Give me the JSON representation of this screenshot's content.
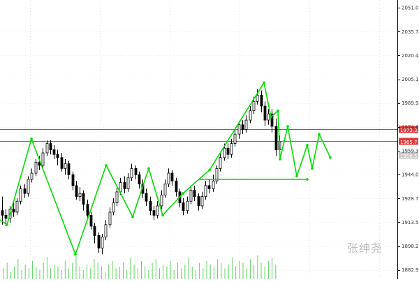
{
  "chart_data": {
    "type": "candlestick",
    "price_axis": {
      "ticks": [
        "2051.02",
        "2035.74",
        "2020.46",
        "2005.18",
        "1989.90",
        "1974.62",
        "1959.34",
        "1944.06",
        "1928.78",
        "1913.50",
        "1898.22",
        "1882.94"
      ],
      "range": [
        1877,
        2056
      ]
    },
    "horizontal_lines": [
      {
        "label": "1973.33",
        "value": 1973.33,
        "color": "#e03a3a"
      },
      {
        "label": "1965.74",
        "value": 1965.74,
        "color": "#e03a3a"
      }
    ],
    "current_price": {
      "label": "1956.57",
      "value": 1956.57
    },
    "zigzag_lines": [
      {
        "name": "main",
        "color": "#00dd00",
        "points": [
          [
            0,
            1915
          ],
          [
            10,
            1912
          ],
          [
            45,
            1967
          ],
          [
            108,
            1893
          ],
          [
            152,
            1950
          ],
          [
            190,
            1917
          ],
          [
            213,
            1948
          ],
          [
            233,
            1918
          ],
          [
            262,
            1932
          ],
          [
            300,
            1947
          ],
          [
            378,
            2003
          ],
          [
            388,
            1981
          ],
          [
            398,
            1985
          ],
          [
            401,
            1954
          ],
          [
            412,
            1975
          ],
          [
            425,
            1943
          ],
          [
            440,
            1963
          ],
          [
            447,
            1948
          ],
          [
            457,
            1970
          ],
          [
            473,
            1955
          ]
        ]
      },
      {
        "name": "support",
        "color": "#00dd00",
        "points": [
          [
            285,
            1941
          ],
          [
            440,
            1941
          ]
        ]
      }
    ],
    "candles": [
      [
        1921,
        1918,
        1930,
        1912
      ],
      [
        1918,
        1916,
        1922,
        1911
      ],
      [
        1916,
        1922,
        1924,
        1913
      ],
      [
        1922,
        1920,
        1926,
        1917
      ],
      [
        1920,
        1927,
        1929,
        1918
      ],
      [
        1927,
        1935,
        1937,
        1925
      ],
      [
        1935,
        1932,
        1938,
        1929
      ],
      [
        1932,
        1941,
        1943,
        1930
      ],
      [
        1941,
        1945,
        1948,
        1939
      ],
      [
        1945,
        1952,
        1954,
        1943
      ],
      [
        1952,
        1950,
        1956,
        1947
      ],
      [
        1950,
        1958,
        1961,
        1948
      ],
      [
        1958,
        1964,
        1966,
        1956
      ],
      [
        1964,
        1960,
        1966,
        1957
      ],
      [
        1960,
        1957,
        1963,
        1954
      ],
      [
        1957,
        1955,
        1960,
        1950
      ],
      [
        1955,
        1948,
        1958,
        1946
      ],
      [
        1948,
        1951,
        1954,
        1944
      ],
      [
        1951,
        1944,
        1953,
        1941
      ],
      [
        1944,
        1937,
        1946,
        1934
      ],
      [
        1937,
        1930,
        1940,
        1928
      ],
      [
        1930,
        1932,
        1936,
        1927
      ],
      [
        1932,
        1925,
        1934,
        1921
      ],
      [
        1925,
        1918,
        1928,
        1915
      ],
      [
        1918,
        1911,
        1920,
        1909
      ],
      [
        1911,
        1905,
        1913,
        1900
      ],
      [
        1905,
        1897,
        1907,
        1894
      ],
      [
        1897,
        1904,
        1906,
        1893
      ],
      [
        1904,
        1912,
        1915,
        1902
      ],
      [
        1912,
        1920,
        1923,
        1910
      ],
      [
        1920,
        1926,
        1929,
        1918
      ],
      [
        1926,
        1933,
        1936,
        1924
      ],
      [
        1933,
        1939,
        1942,
        1931
      ],
      [
        1939,
        1935,
        1943,
        1932
      ],
      [
        1935,
        1942,
        1945,
        1933
      ],
      [
        1942,
        1948,
        1951,
        1940
      ],
      [
        1948,
        1944,
        1950,
        1941
      ],
      [
        1944,
        1938,
        1946,
        1935
      ],
      [
        1938,
        1932,
        1941,
        1929
      ],
      [
        1932,
        1927,
        1935,
        1924
      ],
      [
        1927,
        1921,
        1930,
        1918
      ],
      [
        1921,
        1918,
        1924,
        1915
      ],
      [
        1918,
        1924,
        1927,
        1916
      ],
      [
        1924,
        1931,
        1934,
        1922
      ],
      [
        1931,
        1938,
        1941,
        1929
      ],
      [
        1938,
        1945,
        1948,
        1936
      ],
      [
        1945,
        1940,
        1947,
        1937
      ],
      [
        1940,
        1933,
        1942,
        1930
      ],
      [
        1933,
        1926,
        1935,
        1923
      ],
      [
        1926,
        1921,
        1929,
        1918
      ],
      [
        1921,
        1927,
        1930,
        1919
      ],
      [
        1927,
        1934,
        1937,
        1925
      ],
      [
        1934,
        1930,
        1937,
        1927
      ],
      [
        1930,
        1924,
        1932,
        1921
      ],
      [
        1924,
        1930,
        1933,
        1922
      ],
      [
        1930,
        1937,
        1940,
        1928
      ],
      [
        1937,
        1935,
        1941,
        1932
      ],
      [
        1935,
        1940,
        1944,
        1933
      ],
      [
        1940,
        1948,
        1950,
        1938
      ],
      [
        1948,
        1955,
        1958,
        1946
      ],
      [
        1955,
        1961,
        1964,
        1953
      ],
      [
        1961,
        1957,
        1964,
        1954
      ],
      [
        1957,
        1964,
        1967,
        1955
      ],
      [
        1964,
        1970,
        1973,
        1962
      ],
      [
        1970,
        1976,
        1978,
        1967
      ],
      [
        1976,
        1973,
        1979,
        1970
      ],
      [
        1973,
        1979,
        1982,
        1971
      ],
      [
        1979,
        1985,
        1988,
        1977
      ],
      [
        1985,
        1991,
        1994,
        1983
      ],
      [
        1991,
        1995,
        1999,
        1989
      ],
      [
        1995,
        1988,
        1998,
        1984
      ],
      [
        1988,
        1979,
        1991,
        1975
      ],
      [
        1979,
        1983,
        1986,
        1976
      ],
      [
        1983,
        1975,
        1986,
        1971
      ],
      [
        1975,
        1960,
        1980,
        1956
      ],
      [
        1960,
        1965,
        1969,
        1957
      ]
    ],
    "volume_bars": [
      6,
      9,
      4,
      7,
      11,
      5,
      8,
      6,
      10,
      7,
      5,
      9,
      12,
      6,
      8,
      7,
      5,
      10,
      6,
      9,
      13,
      7,
      5,
      8,
      6,
      11,
      9,
      7,
      4,
      8,
      10,
      6,
      7,
      9,
      5,
      12,
      8,
      6,
      10,
      7,
      5,
      9,
      11,
      6,
      8,
      7,
      10,
      5,
      9,
      6,
      8,
      12,
      7,
      5,
      9,
      6,
      10,
      8,
      7,
      11,
      9,
      6,
      8,
      12,
      7,
      10,
      9,
      6,
      11,
      8,
      13,
      9,
      7,
      10,
      12,
      8
    ]
  },
  "watermark_text": "张绅尧"
}
